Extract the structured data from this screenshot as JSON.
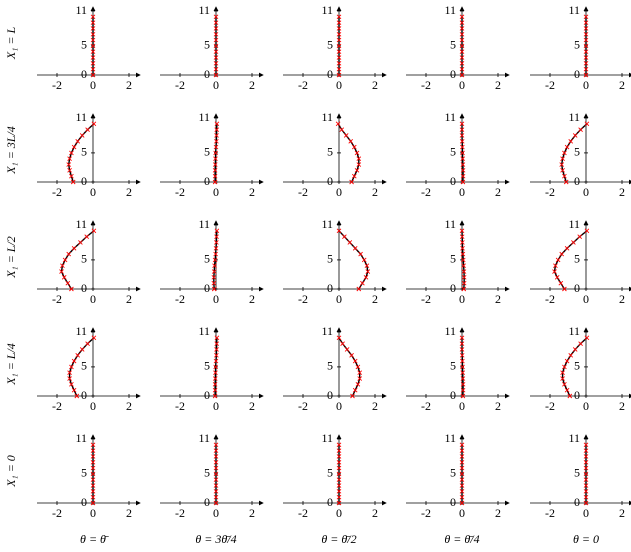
{
  "row_labels": [
    "X₁ = L",
    "X₁ = 3L/4",
    "X₁ = L/2",
    "X₁ = L/4",
    "X₁ = 0"
  ],
  "column_labels": [
    "θ = θ̄",
    "θ = 3θ̄/4",
    "θ = θ̄/2",
    "θ = θ̄/4",
    "θ = 0"
  ],
  "chart_data": [
    {
      "type": "line",
      "x": [
        0,
        0,
        0,
        0,
        0,
        0,
        0,
        0,
        0,
        0,
        0
      ],
      "values": [
        0,
        1,
        2,
        3,
        4,
        5,
        6,
        7,
        8,
        9,
        10
      ],
      "color": "#000000",
      "marker_color": "#ff0000",
      "xlim": [
        -3,
        2.5
      ],
      "ylim": [
        0,
        11
      ],
      "xticks": [
        -2,
        0,
        2
      ],
      "yticks": [
        0,
        5,
        11
      ]
    },
    {
      "type": "line",
      "x": [
        0,
        0,
        0,
        0,
        0,
        0,
        0,
        0,
        0,
        0,
        0
      ],
      "values": [
        0,
        1,
        2,
        3,
        4,
        5,
        6,
        7,
        8,
        9,
        10
      ],
      "color": "#000000",
      "marker_color": "#ff0000",
      "xlim": [
        -3,
        2.5
      ],
      "ylim": [
        0,
        11
      ],
      "xticks": [
        -2,
        0,
        2
      ],
      "yticks": [
        0,
        5,
        11
      ]
    },
    {
      "type": "line",
      "x": [
        0,
        0,
        0,
        0,
        0,
        0,
        0,
        0,
        0,
        0,
        0
      ],
      "values": [
        0,
        1,
        2,
        3,
        4,
        5,
        6,
        7,
        8,
        9,
        10
      ],
      "color": "#000000",
      "marker_color": "#ff0000",
      "xlim": [
        -3,
        2.5
      ],
      "ylim": [
        0,
        11
      ],
      "xticks": [
        -2,
        0,
        2
      ],
      "yticks": [
        0,
        5,
        11
      ]
    },
    {
      "type": "line",
      "x": [
        0,
        0,
        0,
        0,
        0,
        0,
        0,
        0,
        0,
        0,
        0
      ],
      "values": [
        0,
        1,
        2,
        3,
        4,
        5,
        6,
        7,
        8,
        9,
        10
      ],
      "color": "#000000",
      "marker_color": "#ff0000",
      "xlim": [
        -3,
        2.5
      ],
      "ylim": [
        0,
        11
      ],
      "xticks": [
        -2,
        0,
        2
      ],
      "yticks": [
        0,
        5,
        11
      ]
    },
    {
      "type": "line",
      "x": [
        0,
        0,
        0,
        0,
        0,
        0,
        0,
        0,
        0,
        0,
        0
      ],
      "values": [
        0,
        1,
        2,
        3,
        4,
        5,
        6,
        7,
        8,
        9,
        10
      ],
      "color": "#000000",
      "marker_color": "#ff0000",
      "xlim": [
        -3,
        2.5
      ],
      "ylim": [
        0,
        11
      ],
      "xticks": [
        -2,
        0,
        2
      ],
      "yticks": [
        0,
        5,
        11
      ]
    },
    {
      "type": "line",
      "x": [
        -1.1,
        -1.2,
        -1.3,
        -1.35,
        -1.3,
        -1.2,
        -1.05,
        -0.85,
        -0.6,
        -0.3,
        0.05
      ],
      "values": [
        0,
        1,
        2,
        3,
        4,
        5,
        6,
        7,
        8,
        9,
        10
      ],
      "color": "#000000",
      "marker_color": "#ff0000",
      "xlim": [
        -3,
        2.5
      ],
      "ylim": [
        0,
        11
      ],
      "xticks": [
        -2,
        0,
        2
      ],
      "yticks": [
        0,
        5,
        11
      ]
    },
    {
      "type": "line",
      "x": [
        -0.05,
        -0.05,
        -0.05,
        -0.04,
        -0.03,
        -0.02,
        0,
        0.02,
        0.03,
        0.04,
        0.05
      ],
      "values": [
        0,
        1,
        2,
        3,
        4,
        5,
        6,
        7,
        8,
        9,
        10
      ],
      "color": "#000000",
      "marker_color": "#ff0000",
      "xlim": [
        -3,
        2.5
      ],
      "ylim": [
        0,
        11
      ],
      "xticks": [
        -2,
        0,
        2
      ],
      "yticks": [
        0,
        5,
        11
      ]
    },
    {
      "type": "line",
      "x": [
        0.7,
        0.85,
        1.0,
        1.1,
        1.1,
        1.0,
        0.85,
        0.65,
        0.4,
        0.15,
        -0.05
      ],
      "values": [
        0,
        1,
        2,
        3,
        4,
        5,
        6,
        7,
        8,
        9,
        10
      ],
      "color": "#000000",
      "marker_color": "#ff0000",
      "xlim": [
        -3,
        2.5
      ],
      "ylim": [
        0,
        11
      ],
      "xticks": [
        -2,
        0,
        2
      ],
      "yticks": [
        0,
        5,
        11
      ]
    },
    {
      "type": "line",
      "x": [
        0.05,
        0.06,
        0.06,
        0.05,
        0.04,
        0.03,
        0.02,
        0.01,
        0,
        0,
        0
      ],
      "values": [
        0,
        1,
        2,
        3,
        4,
        5,
        6,
        7,
        8,
        9,
        10
      ],
      "color": "#000000",
      "marker_color": "#ff0000",
      "xlim": [
        -3,
        2.5
      ],
      "ylim": [
        0,
        11
      ],
      "xticks": [
        -2,
        0,
        2
      ],
      "yticks": [
        0,
        5,
        11
      ]
    },
    {
      "type": "line",
      "x": [
        -1.1,
        -1.2,
        -1.3,
        -1.35,
        -1.3,
        -1.2,
        -1.05,
        -0.85,
        -0.6,
        -0.3,
        0.05
      ],
      "values": [
        0,
        1,
        2,
        3,
        4,
        5,
        6,
        7,
        8,
        9,
        10
      ],
      "color": "#000000",
      "marker_color": "#ff0000",
      "xlim": [
        -3,
        2.5
      ],
      "ylim": [
        0,
        11
      ],
      "xticks": [
        -2,
        0,
        2
      ],
      "yticks": [
        0,
        5,
        11
      ]
    },
    {
      "type": "line",
      "x": [
        -1.2,
        -1.4,
        -1.6,
        -1.75,
        -1.7,
        -1.55,
        -1.35,
        -1.05,
        -0.7,
        -0.35,
        0.05
      ],
      "values": [
        0,
        1,
        2,
        3,
        4,
        5,
        6,
        7,
        8,
        9,
        10
      ],
      "color": "#000000",
      "marker_color": "#ff0000",
      "xlim": [
        -3,
        2.5
      ],
      "ylim": [
        0,
        11
      ],
      "xticks": [
        -2,
        0,
        2
      ],
      "yticks": [
        0,
        5,
        11
      ]
    },
    {
      "type": "line",
      "x": [
        -0.1,
        -0.12,
        -0.12,
        -0.1,
        -0.08,
        -0.05,
        -0.02,
        0,
        0.02,
        0.03,
        0.05
      ],
      "values": [
        0,
        1,
        2,
        3,
        4,
        5,
        6,
        7,
        8,
        9,
        10
      ],
      "color": "#000000",
      "marker_color": "#ff0000",
      "xlim": [
        -3,
        2.5
      ],
      "ylim": [
        0,
        11
      ],
      "xticks": [
        -2,
        0,
        2
      ],
      "yticks": [
        0,
        5,
        11
      ]
    },
    {
      "type": "line",
      "x": [
        1.1,
        1.3,
        1.5,
        1.6,
        1.55,
        1.4,
        1.2,
        0.9,
        0.6,
        0.3,
        0
      ],
      "values": [
        0,
        1,
        2,
        3,
        4,
        5,
        6,
        7,
        8,
        9,
        10
      ],
      "color": "#000000",
      "marker_color": "#ff0000",
      "xlim": [
        -3,
        2.5
      ],
      "ylim": [
        0,
        11
      ],
      "xticks": [
        -2,
        0,
        2
      ],
      "yticks": [
        0,
        5,
        11
      ]
    },
    {
      "type": "line",
      "x": [
        0.1,
        0.12,
        0.12,
        0.11,
        0.09,
        0.07,
        0.05,
        0.03,
        0.02,
        0.01,
        0
      ],
      "values": [
        0,
        1,
        2,
        3,
        4,
        5,
        6,
        7,
        8,
        9,
        10
      ],
      "color": "#000000",
      "marker_color": "#ff0000",
      "xlim": [
        -3,
        2.5
      ],
      "ylim": [
        0,
        11
      ],
      "xticks": [
        -2,
        0,
        2
      ],
      "yticks": [
        0,
        5,
        11
      ]
    },
    {
      "type": "line",
      "x": [
        -1.2,
        -1.4,
        -1.6,
        -1.75,
        -1.7,
        -1.55,
        -1.35,
        -1.05,
        -0.7,
        -0.35,
        0.05
      ],
      "values": [
        0,
        1,
        2,
        3,
        4,
        5,
        6,
        7,
        8,
        9,
        10
      ],
      "color": "#000000",
      "marker_color": "#ff0000",
      "xlim": [
        -3,
        2.5
      ],
      "ylim": [
        0,
        11
      ],
      "xticks": [
        -2,
        0,
        2
      ],
      "yticks": [
        0,
        5,
        11
      ]
    },
    {
      "type": "line",
      "x": [
        -0.9,
        -1.05,
        -1.2,
        -1.3,
        -1.3,
        -1.2,
        -1.05,
        -0.85,
        -0.6,
        -0.3,
        0.05
      ],
      "values": [
        0,
        1,
        2,
        3,
        4,
        5,
        6,
        7,
        8,
        9,
        10
      ],
      "color": "#000000",
      "marker_color": "#ff0000",
      "xlim": [
        -3,
        2.5
      ],
      "ylim": [
        0,
        11
      ],
      "xticks": [
        -2,
        0,
        2
      ],
      "yticks": [
        0,
        5,
        11
      ]
    },
    {
      "type": "line",
      "x": [
        -0.05,
        -0.05,
        -0.05,
        -0.04,
        -0.03,
        -0.02,
        0,
        0.02,
        0.03,
        0.04,
        0.05
      ],
      "values": [
        0,
        1,
        2,
        3,
        4,
        5,
        6,
        7,
        8,
        9,
        10
      ],
      "color": "#000000",
      "marker_color": "#ff0000",
      "xlim": [
        -3,
        2.5
      ],
      "ylim": [
        0,
        11
      ],
      "xticks": [
        -2,
        0,
        2
      ],
      "yticks": [
        0,
        5,
        11
      ]
    },
    {
      "type": "line",
      "x": [
        0.75,
        0.9,
        1.05,
        1.15,
        1.15,
        1.05,
        0.9,
        0.7,
        0.45,
        0.2,
        0
      ],
      "values": [
        0,
        1,
        2,
        3,
        4,
        5,
        6,
        7,
        8,
        9,
        10
      ],
      "color": "#000000",
      "marker_color": "#ff0000",
      "xlim": [
        -3,
        2.5
      ],
      "ylim": [
        0,
        11
      ],
      "xticks": [
        -2,
        0,
        2
      ],
      "yticks": [
        0,
        5,
        11
      ]
    },
    {
      "type": "line",
      "x": [
        0.05,
        0.06,
        0.06,
        0.05,
        0.04,
        0.03,
        0.02,
        0.01,
        0,
        0,
        0
      ],
      "values": [
        0,
        1,
        2,
        3,
        4,
        5,
        6,
        7,
        8,
        9,
        10
      ],
      "color": "#000000",
      "marker_color": "#ff0000",
      "xlim": [
        -3,
        2.5
      ],
      "ylim": [
        0,
        11
      ],
      "xticks": [
        -2,
        0,
        2
      ],
      "yticks": [
        0,
        5,
        11
      ]
    },
    {
      "type": "line",
      "x": [
        -0.9,
        -1.05,
        -1.2,
        -1.3,
        -1.3,
        -1.2,
        -1.05,
        -0.85,
        -0.6,
        -0.3,
        0.05
      ],
      "values": [
        0,
        1,
        2,
        3,
        4,
        5,
        6,
        7,
        8,
        9,
        10
      ],
      "color": "#000000",
      "marker_color": "#ff0000",
      "xlim": [
        -3,
        2.5
      ],
      "ylim": [
        0,
        11
      ],
      "xticks": [
        -2,
        0,
        2
      ],
      "yticks": [
        0,
        5,
        11
      ]
    },
    {
      "type": "line",
      "x": [
        0,
        0,
        0,
        0,
        0,
        0,
        0,
        0,
        0,
        0,
        0
      ],
      "values": [
        0,
        1,
        2,
        3,
        4,
        5,
        6,
        7,
        8,
        9,
        10
      ],
      "color": "#000000",
      "marker_color": "#ff0000",
      "xlim": [
        -3,
        2.5
      ],
      "ylim": [
        0,
        11
      ],
      "xticks": [
        -2,
        0,
        2
      ],
      "yticks": [
        0,
        5,
        11
      ]
    },
    {
      "type": "line",
      "x": [
        0,
        0,
        0,
        0,
        0,
        0,
        0,
        0,
        0,
        0,
        0
      ],
      "values": [
        0,
        1,
        2,
        3,
        4,
        5,
        6,
        7,
        8,
        9,
        10
      ],
      "color": "#000000",
      "marker_color": "#ff0000",
      "xlim": [
        -3,
        2.5
      ],
      "ylim": [
        0,
        11
      ],
      "xticks": [
        -2,
        0,
        2
      ],
      "yticks": [
        0,
        5,
        11
      ]
    },
    {
      "type": "line",
      "x": [
        0,
        0,
        0,
        0,
        0,
        0,
        0,
        0,
        0,
        0,
        0
      ],
      "values": [
        0,
        1,
        2,
        3,
        4,
        5,
        6,
        7,
        8,
        9,
        10
      ],
      "color": "#000000",
      "marker_color": "#ff0000",
      "xlim": [
        -3,
        2.5
      ],
      "ylim": [
        0,
        11
      ],
      "xticks": [
        -2,
        0,
        2
      ],
      "yticks": [
        0,
        5,
        11
      ]
    },
    {
      "type": "line",
      "x": [
        0,
        0,
        0,
        0,
        0,
        0,
        0,
        0,
        0,
        0,
        0
      ],
      "values": [
        0,
        1,
        2,
        3,
        4,
        5,
        6,
        7,
        8,
        9,
        10
      ],
      "color": "#000000",
      "marker_color": "#ff0000",
      "xlim": [
        -3,
        2.5
      ],
      "ylim": [
        0,
        11
      ],
      "xticks": [
        -2,
        0,
        2
      ],
      "yticks": [
        0,
        5,
        11
      ]
    },
    {
      "type": "line",
      "x": [
        0,
        0,
        0,
        0,
        0,
        0,
        0,
        0,
        0,
        0,
        0
      ],
      "values": [
        0,
        1,
        2,
        3,
        4,
        5,
        6,
        7,
        8,
        9,
        10
      ],
      "color": "#000000",
      "marker_color": "#ff0000",
      "xlim": [
        -3,
        2.5
      ],
      "ylim": [
        0,
        11
      ],
      "xticks": [
        -2,
        0,
        2
      ],
      "yticks": [
        0,
        5,
        11
      ]
    }
  ]
}
